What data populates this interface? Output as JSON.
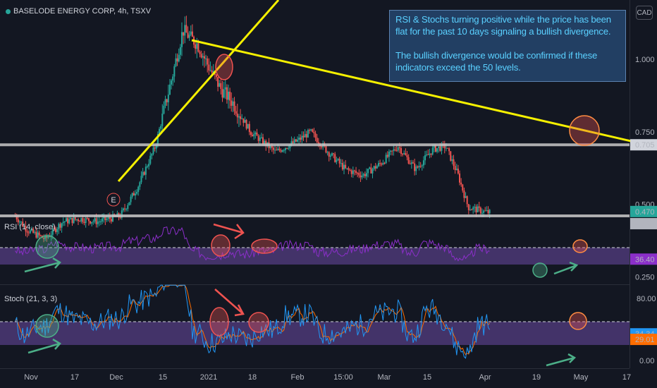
{
  "header": {
    "symbol": "BASELODE ENERGY CORP, 4h, TSXV",
    "currency": "CAD"
  },
  "annotation": {
    "line1": "RSI & Stochs turning positive while the price has been flat for the past 10 days signaling a bullish divergence.",
    "line2": "The bullish divergence would be confirmed if these indicators exceed the 50 levels."
  },
  "colors": {
    "background": "#131722",
    "up": "#26a69a",
    "down": "#ef5350",
    "trendline": "#f5f000",
    "level": "#b2b5be",
    "rsi": "#8b2fc9",
    "stoch_k": "#2196f3",
    "stoch_d": "#ff6d00",
    "circle": "#ef5350",
    "green_marker": "#4caf88"
  },
  "chart_data": [
    {
      "type": "candlestick",
      "title": "BASELODE ENERGY CORP, 4h, TSXV",
      "ylim": [
        0.22,
        1.3
      ],
      "yticks": [
        "1.000",
        "0.750",
        "0.500",
        "0.250"
      ],
      "x_ticks": [
        "Nov",
        "17",
        "Dec",
        "15",
        "2021",
        "18",
        "Feb",
        "15:00",
        "Mar",
        "15",
        "Apr",
        "19",
        "May",
        "17"
      ],
      "levels": [
        {
          "name": "resistance",
          "value": 0.705,
          "label": "0.705"
        },
        {
          "name": "support",
          "value": 0.46
        }
      ],
      "price_labels": [
        {
          "value": 0.47,
          "label": "0.470",
          "color": "#26a69a"
        },
        {
          "value": 0.45,
          "label": "0.450",
          "color": "#b2b5be"
        }
      ],
      "earnings_marker": "E",
      "price_path": [
        [
          "Oct 20",
          0.46
        ],
        [
          "Oct 25",
          0.41
        ],
        [
          "Nov 1",
          0.38
        ],
        [
          "Nov 8",
          0.44
        ],
        [
          "Nov 15",
          0.45
        ],
        [
          "Nov 22",
          0.44
        ],
        [
          "Dec 1",
          0.46
        ],
        [
          "Dec 8",
          0.56
        ],
        [
          "Dec 15",
          0.7
        ],
        [
          "Dec 22",
          0.95
        ],
        [
          "Dec 26",
          1.1
        ],
        [
          "Jan 1",
          1.05
        ],
        [
          "Jan 5",
          0.98
        ],
        [
          "Jan 10",
          0.9
        ],
        [
          "Jan 15",
          0.85
        ],
        [
          "Jan 22",
          0.75
        ],
        [
          "Feb 1",
          0.68
        ],
        [
          "Feb 10",
          0.72
        ],
        [
          "Feb 15",
          0.75
        ],
        [
          "Feb 22",
          0.68
        ],
        [
          "Mar 1",
          0.62
        ],
        [
          "Mar 8",
          0.6
        ],
        [
          "Mar 15",
          0.64
        ],
        [
          "Mar 22",
          0.7
        ],
        [
          "Mar 29",
          0.62
        ],
        [
          "Apr 5",
          0.69
        ],
        [
          "Apr 10",
          0.7
        ],
        [
          "Apr 15",
          0.6
        ],
        [
          "Apr 19",
          0.49
        ],
        [
          "Apr 25",
          0.475
        ],
        [
          "Apr 28",
          0.47
        ]
      ]
    },
    {
      "type": "line",
      "title": "RSI (14, close)",
      "ylim": [
        0,
        100
      ],
      "yticks": [
        "80.00"
      ],
      "band": [
        30,
        70
      ],
      "midline": 50,
      "last_value": {
        "value": 36.4,
        "label": "36.40"
      }
    },
    {
      "type": "line",
      "title": "Stoch (21, 3, 3)",
      "ylim": [
        0,
        100
      ],
      "yticks": [
        "80.00",
        "0.00"
      ],
      "band": [
        20,
        50
      ],
      "midline": 50,
      "series": [
        {
          "key": "k",
          "last_value": {
            "value": 34.34,
            "label": "34.34"
          }
        },
        {
          "key": "d",
          "last_value": {
            "value": 29.01,
            "label": "29.01"
          }
        }
      ]
    }
  ]
}
